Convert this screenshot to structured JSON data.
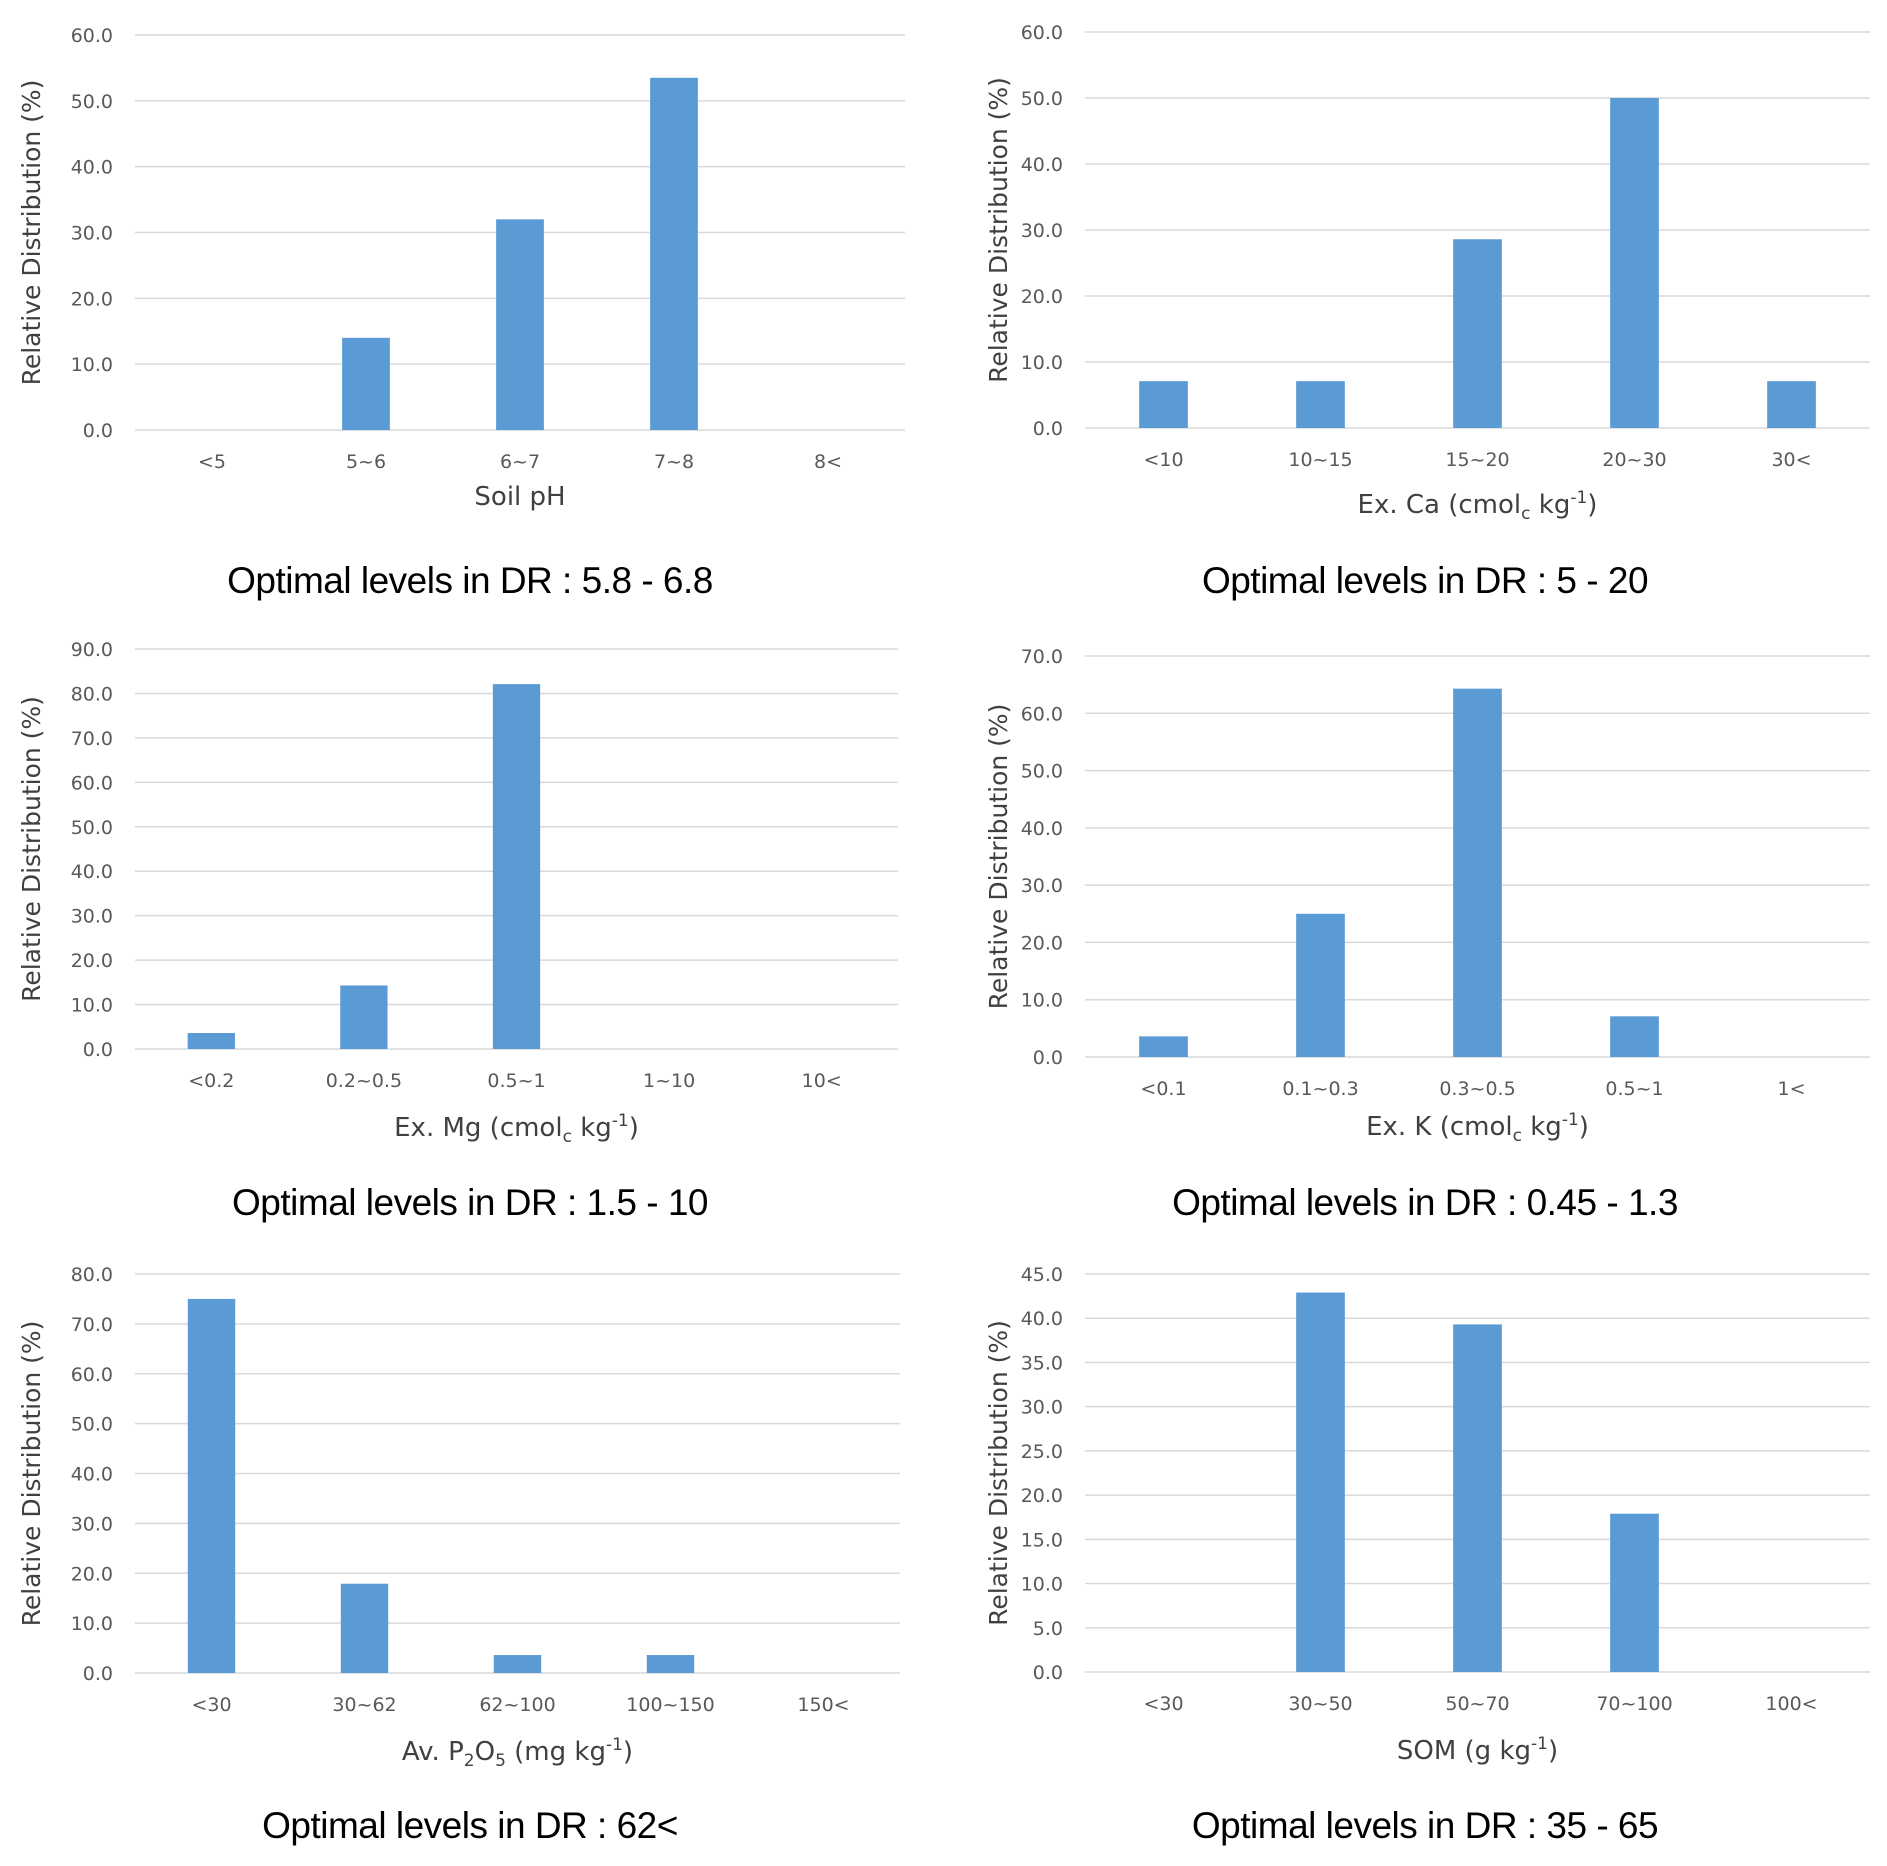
{
  "chart_data": [
    {
      "type": "bar",
      "title": "",
      "ylabel": "Relative Distribution (%)",
      "xlabel": {
        "main": "Soil pH",
        "sub": "",
        "sup": "",
        "tail": ""
      },
      "categories": [
        "<5",
        "5~6",
        "6~7",
        "7~8",
        "8<"
      ],
      "values": [
        0,
        14,
        32,
        53.5,
        0
      ],
      "ylim": [
        0,
        60
      ],
      "yticks": [
        "0.0",
        "10.0",
        "20.0",
        "30.0",
        "40.0",
        "50.0",
        "60.0"
      ],
      "color": "#5b9bd5",
      "caption": "Optimal levels in DR : 5.8 - 6.8"
    },
    {
      "type": "bar",
      "title": "",
      "ylabel": "Relative Distribution (%)",
      "xlabel": {
        "main": "Ex. Ca (cmol",
        "sub": "c",
        "mid": " kg",
        "sup": "-1",
        "tail": ")"
      },
      "categories": [
        "<10",
        "10~15",
        "15~20",
        "20~30",
        "30<"
      ],
      "values": [
        7.1,
        7.1,
        28.6,
        50,
        7.1
      ],
      "ylim": [
        0,
        60
      ],
      "yticks": [
        "0.0",
        "10.0",
        "20.0",
        "30.0",
        "40.0",
        "50.0",
        "60.0"
      ],
      "color": "#5b9bd5",
      "caption": "Optimal levels in DR : 5 - 20"
    },
    {
      "type": "bar",
      "title": "",
      "ylabel": "Relative Distribution (%)",
      "xlabel": {
        "main": "Ex. Mg (cmol",
        "sub": "c",
        "mid": " kg",
        "sup": "-1",
        "tail": ")"
      },
      "categories": [
        "<0.2",
        "0.2~0.5",
        "0.5~1",
        "1~10",
        "10<"
      ],
      "values": [
        3.6,
        14.3,
        82.1,
        0,
        0
      ],
      "ylim": [
        0,
        90
      ],
      "yticks": [
        "0.0",
        "10.0",
        "20.0",
        "30.0",
        "40.0",
        "50.0",
        "60.0",
        "70.0",
        "80.0",
        "90.0"
      ],
      "color": "#5b9bd5",
      "caption": "Optimal levels in DR : 1.5 - 10"
    },
    {
      "type": "bar",
      "title": "",
      "ylabel": "Relative Distribution (%)",
      "xlabel": {
        "main": "Ex. K (cmol",
        "sub": "c",
        "mid": " kg",
        "sup": "-1",
        "tail": ")"
      },
      "categories": [
        "<0.1",
        "0.1~0.3",
        "0.3~0.5",
        "0.5~1",
        "1<"
      ],
      "values": [
        3.6,
        25,
        64.3,
        7.1,
        0
      ],
      "ylim": [
        0,
        70
      ],
      "yticks": [
        "0.0",
        "10.0",
        "20.0",
        "30.0",
        "40.0",
        "50.0",
        "60.0",
        "70.0"
      ],
      "color": "#5b9bd5",
      "caption": "Optimal levels in DR : 0.45 - 1.3"
    },
    {
      "type": "bar",
      "title": "",
      "ylabel": "Relative Distribution (%)",
      "xlabel": {
        "main": "Av. P",
        "sub": "2",
        "mid": "O",
        "sub2": "5",
        "mid2": " (mg kg",
        "sup": "-1",
        "tail": ")"
      },
      "categories": [
        "<30",
        "30~62",
        "62~100",
        "100~150",
        "150<"
      ],
      "values": [
        75,
        17.9,
        3.6,
        3.6,
        0
      ],
      "ylim": [
        0,
        80
      ],
      "yticks": [
        "0.0",
        "10.0",
        "20.0",
        "30.0",
        "40.0",
        "50.0",
        "60.0",
        "70.0",
        "80.0"
      ],
      "color": "#5b9bd5",
      "caption": "Optimal levels in DR : 62<"
    },
    {
      "type": "bar",
      "title": "",
      "ylabel": "Relative Distribution (%)",
      "xlabel": {
        "main": "SOM (g kg",
        "sub": "",
        "mid": "",
        "sup": "-1",
        "tail": ")"
      },
      "categories": [
        "<30",
        "30~50",
        "50~70",
        "70~100",
        "100<"
      ],
      "values": [
        0,
        42.9,
        39.3,
        17.9,
        0
      ],
      "ylim": [
        0,
        45
      ],
      "yticks": [
        "0.0",
        "5.0",
        "10.0",
        "15.0",
        "20.0",
        "25.0",
        "30.0",
        "35.0",
        "40.0",
        "45.0"
      ],
      "color": "#5b9bd5",
      "caption": "Optimal levels in DR : 35 - 65"
    }
  ]
}
